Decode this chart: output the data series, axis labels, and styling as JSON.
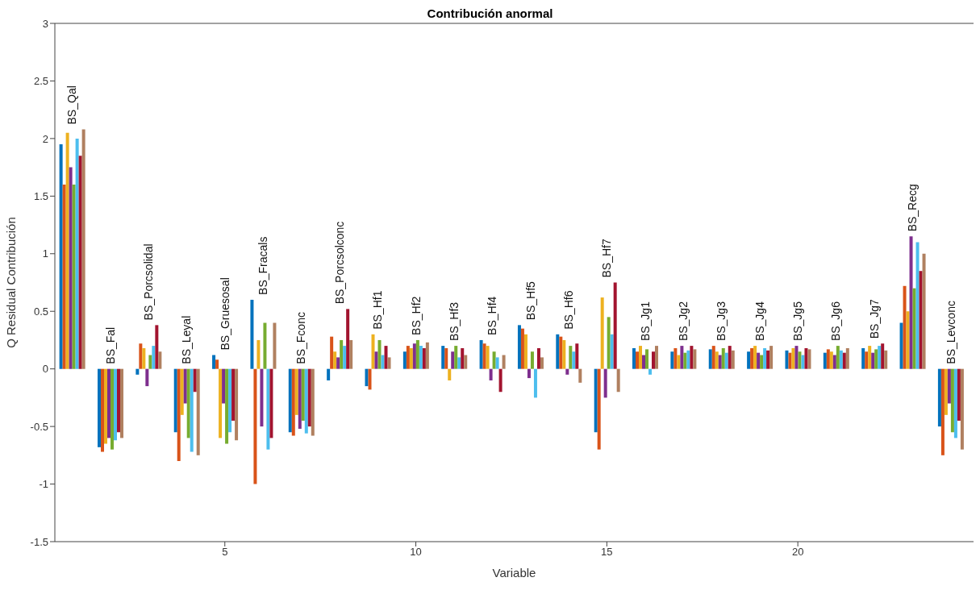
{
  "chart_data": {
    "type": "bar",
    "title": "Contribución anormal",
    "xlabel": "Variable",
    "ylabel": "Q Residual Contribución",
    "x": [
      1,
      2,
      3,
      4,
      5,
      6,
      7,
      8,
      9,
      10,
      11,
      12,
      13,
      14,
      15,
      16,
      17,
      18,
      19,
      20,
      21,
      22,
      23,
      24
    ],
    "xlim": [
      0.55,
      24.6
    ],
    "xticks": [
      5,
      10,
      15,
      20
    ],
    "ylim": [
      -1.5,
      3
    ],
    "yticks": [
      -1.5,
      -1,
      -0.5,
      0,
      0.5,
      1,
      1.5,
      2,
      2.5,
      3
    ],
    "grid": false,
    "legend": false,
    "series": [
      {
        "color": "#0072bd",
        "values": [
          1.95,
          -0.68,
          -0.05,
          -0.55,
          0.12,
          0.6,
          -0.55,
          -0.1,
          -0.15,
          0.15,
          0.2,
          0.25,
          0.38,
          0.3,
          -0.55,
          0.18,
          0.15,
          0.17,
          0.15,
          0.16,
          0.14,
          0.18,
          0.4,
          -0.5
        ]
      },
      {
        "color": "#d95319",
        "values": [
          1.6,
          -0.72,
          0.22,
          -0.8,
          0.08,
          -1.0,
          -0.58,
          0.28,
          -0.18,
          0.2,
          0.18,
          0.22,
          0.35,
          0.28,
          -0.7,
          0.15,
          0.18,
          0.2,
          0.18,
          0.14,
          0.17,
          0.15,
          0.72,
          -0.75
        ]
      },
      {
        "color": "#edb120",
        "values": [
          2.05,
          -0.65,
          0.18,
          -0.4,
          -0.6,
          0.25,
          -0.4,
          0.15,
          0.3,
          0.18,
          -0.1,
          0.2,
          0.3,
          0.25,
          0.62,
          0.2,
          0.12,
          0.15,
          0.2,
          0.18,
          0.15,
          0.2,
          0.5,
          -0.4
        ]
      },
      {
        "color": "#7e2f8e",
        "values": [
          1.75,
          -0.6,
          -0.15,
          -0.3,
          -0.3,
          -0.5,
          -0.52,
          0.1,
          0.15,
          0.22,
          0.15,
          -0.1,
          -0.08,
          -0.05,
          -0.25,
          0.12,
          0.2,
          0.12,
          0.14,
          0.2,
          0.12,
          0.14,
          1.15,
          -0.3
        ]
      },
      {
        "color": "#77ac30",
        "values": [
          1.6,
          -0.7,
          0.12,
          -0.6,
          -0.65,
          0.4,
          -0.45,
          0.25,
          0.25,
          0.25,
          0.2,
          0.15,
          0.15,
          0.2,
          0.45,
          0.17,
          0.14,
          0.18,
          0.12,
          0.15,
          0.2,
          0.17,
          0.7,
          -0.55
        ]
      },
      {
        "color": "#4dbeee",
        "values": [
          2.0,
          -0.62,
          0.2,
          -0.72,
          -0.55,
          -0.7,
          -0.56,
          0.2,
          0.12,
          0.2,
          0.1,
          0.1,
          -0.25,
          0.15,
          0.3,
          -0.05,
          0.16,
          0.14,
          0.18,
          0.12,
          0.16,
          0.2,
          1.1,
          -0.6
        ]
      },
      {
        "color": "#a2142f",
        "values": [
          1.85,
          -0.55,
          0.38,
          -0.2,
          -0.45,
          -0.6,
          -0.5,
          0.52,
          0.2,
          0.18,
          0.18,
          -0.2,
          0.18,
          0.22,
          0.75,
          0.15,
          0.2,
          0.2,
          0.16,
          0.18,
          0.14,
          0.22,
          0.85,
          -0.45
        ]
      },
      {
        "color": "#b08060",
        "values": [
          2.08,
          -0.6,
          0.15,
          -0.75,
          -0.62,
          0.4,
          -0.58,
          0.25,
          0.1,
          0.23,
          0.12,
          0.12,
          0.1,
          -0.12,
          -0.2,
          0.2,
          0.17,
          0.16,
          0.2,
          0.17,
          0.18,
          0.16,
          1.0,
          -0.7
        ]
      }
    ],
    "annotations": [
      "BS_Qal",
      "BS_Fal",
      "BS_Porcsolidal",
      "BS_Leyal",
      "BS_Gruesosal",
      "BS_Fracals",
      "BS_Fconc",
      "BS_Porcsolconc",
      "BS_Hf1",
      "BS_Hf2",
      "BS_Hf3",
      "BS_Hf4",
      "BS_Hf5",
      "BS_Hf6",
      "BS_Hf7",
      "BS_Jg1",
      "BS_Jg2",
      "BS_Jg3",
      "BS_Jg4",
      "BS_Jg5",
      "BS_Jg6",
      "BS_Jg7",
      "BS_Recg",
      "BS_Levconc"
    ]
  }
}
